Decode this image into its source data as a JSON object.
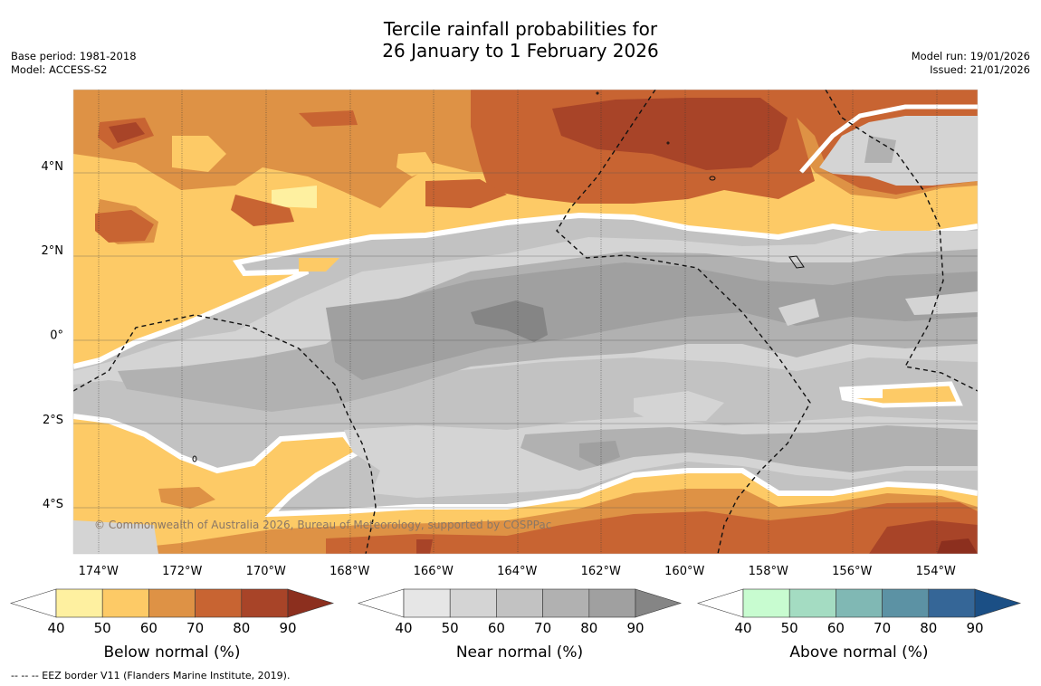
{
  "title": {
    "line1": "Tercile rainfall probabilities for",
    "line2": "26 January to 1 February 2026"
  },
  "left_meta": {
    "base_period": "Base period: 1981-2018",
    "model": "Model: ACCESS-S2"
  },
  "right_meta": {
    "model_run": "Model run: 19/01/2026",
    "issued": "Issued: 21/01/2026"
  },
  "map": {
    "lon_range": [
      -174.6,
      -153.0
    ],
    "lat_range": [
      -5.2,
      5.8
    ],
    "lon_ticks": [
      -174,
      -172,
      -170,
      -168,
      -166,
      -164,
      -162,
      -160,
      -158,
      -156,
      -154
    ],
    "lon_labels": [
      "174°W",
      "172°W",
      "170°W",
      "168°W",
      "166°W",
      "164°W",
      "162°W",
      "160°W",
      "158°W",
      "156°W",
      "154°W"
    ],
    "lat_ticks": [
      4,
      2,
      0,
      -2,
      -4
    ],
    "lat_labels": [
      "4°N",
      "2°N",
      "0°",
      "2°S",
      "4°S"
    ],
    "copyright": "© Commonwealth of Australia 2026, Bureau of Meteorology, supported by COSPPac"
  },
  "colorbars": [
    {
      "label": "Below normal (%)",
      "ticks": [
        "40",
        "50",
        "60",
        "70",
        "80",
        "90"
      ],
      "colors": [
        "#fef0a0",
        "#fdca66",
        "#de9245",
        "#c86432",
        "#a84428",
        "#8c2f1e"
      ]
    },
    {
      "label": "Near normal (%)",
      "ticks": [
        "40",
        "50",
        "60",
        "70",
        "80",
        "90"
      ],
      "colors": [
        "#e6e6e6",
        "#d4d4d4",
        "#c2c2c2",
        "#b1b1b1",
        "#a0a0a0",
        "#858585"
      ]
    },
    {
      "label": "Above normal (%)",
      "ticks": [
        "40",
        "50",
        "60",
        "70",
        "80",
        "90"
      ],
      "colors": [
        "#c8fcd0",
        "#a4dcc2",
        "#80b8b4",
        "#5c92a4",
        "#356697",
        "#1b4f85"
      ]
    }
  ],
  "footer": "--  --  -- EEZ border V11 (Flanders Marine Institute, 2019)."
}
